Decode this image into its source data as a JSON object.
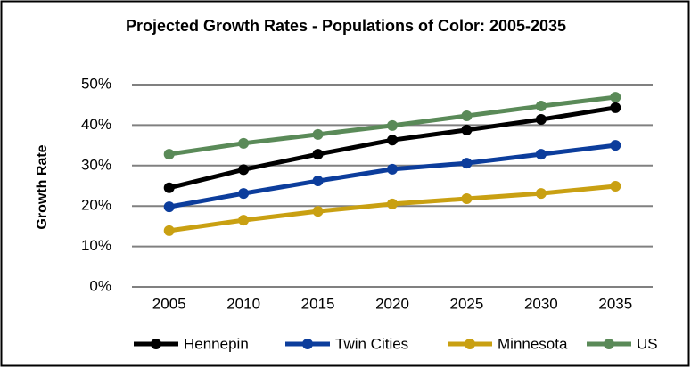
{
  "chart_data": {
    "type": "line",
    "title": "Projected Growth Rates - Populations of Color: 2005-2035",
    "y_label": "Growth Rate",
    "categories": [
      "2005",
      "2010",
      "2015",
      "2020",
      "2025",
      "2030",
      "2035"
    ],
    "series": [
      {
        "name": "Hennepin",
        "color": "#000000",
        "values": [
          24.5,
          29,
          32.8,
          36.3,
          38.8,
          41.4,
          44.3
        ]
      },
      {
        "name": "Twin Cities",
        "color": "#0c3d9c",
        "values": [
          19.8,
          23.1,
          26.2,
          29.1,
          30.6,
          32.8,
          35
        ]
      },
      {
        "name": "Minnesota",
        "color": "#c9a012",
        "values": [
          13.9,
          16.5,
          18.7,
          20.5,
          21.8,
          23.1,
          24.9
        ]
      },
      {
        "name": "US",
        "color": "#5a8a58",
        "values": [
          32.8,
          35.5,
          37.7,
          39.9,
          42.3,
          44.7,
          46.9
        ]
      }
    ],
    "ylim": [
      0,
      50
    ],
    "yticks": [
      {
        "value": 0,
        "label": "0%"
      },
      {
        "value": 10,
        "label": "10%"
      },
      {
        "value": 20,
        "label": "20%"
      },
      {
        "value": 30,
        "label": "30%"
      },
      {
        "value": 40,
        "label": "40%"
      },
      {
        "value": 50,
        "label": "50%"
      }
    ],
    "grid": true,
    "legend": "bottom"
  }
}
